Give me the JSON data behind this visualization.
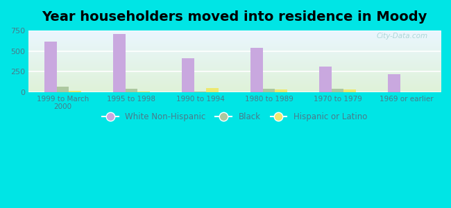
{
  "title": "Year householders moved into residence in Moody",
  "categories": [
    "1999 to March\n2000",
    "1995 to 1998",
    "1990 to 1994",
    "1980 to 1989",
    "1970 to 1979",
    "1969 or earlier"
  ],
  "white_non_hispanic": [
    615,
    710,
    415,
    540,
    310,
    220
  ],
  "black": [
    65,
    45,
    10,
    40,
    40,
    0
  ],
  "hispanic_or_latino": [
    15,
    10,
    50,
    30,
    30,
    0
  ],
  "white_color": "#c9a8df",
  "black_color": "#adc8a0",
  "hispanic_color": "#ede870",
  "bg_outer": "#00e5e5",
  "bg_plot_top": "#eaf6ff",
  "bg_plot_bottom": "#dff2d8",
  "ylim": [
    0,
    750
  ],
  "yticks": [
    0,
    250,
    500,
    750
  ],
  "title_fontsize": 14,
  "watermark": "City-Data.com",
  "bar_width": 0.18,
  "legend_labels": [
    "White Non-Hispanic",
    "Black",
    "Hispanic or Latino"
  ]
}
